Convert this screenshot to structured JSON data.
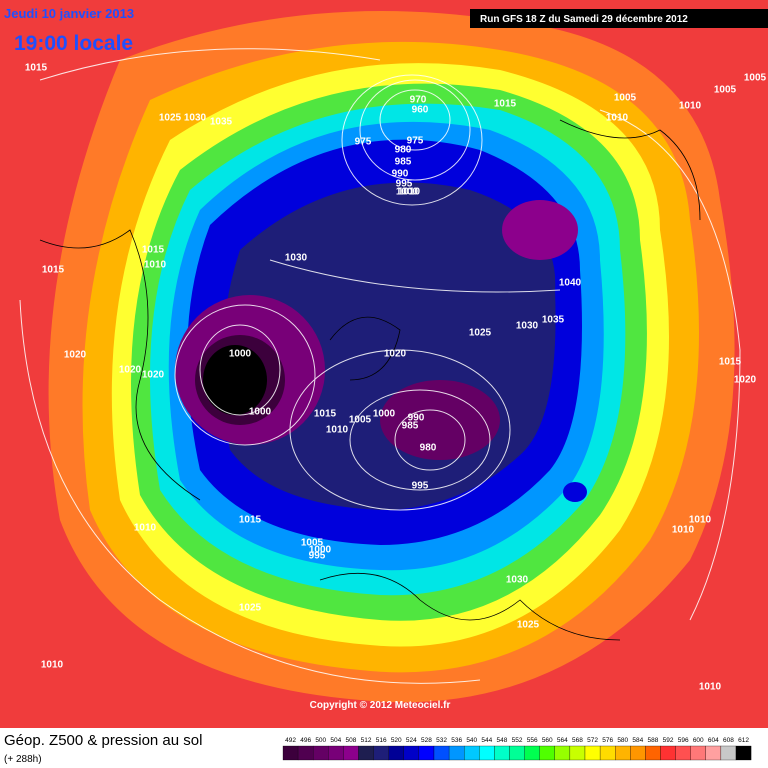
{
  "header": {
    "date": "Jeudi 10 janvier 2013",
    "time": "19:00 locale",
    "run": "Run GFS 18 Z du Samedi 29 décembre 2012"
  },
  "footer": {
    "copyright": "Copyright © 2012 Meteociel.fr",
    "title": "Géop. Z500 & pression au sol",
    "subtitle": "(+ 288h)"
  },
  "colorbar": {
    "values": [
      492,
      496,
      500,
      504,
      508,
      512,
      516,
      520,
      524,
      528,
      532,
      536,
      540,
      544,
      548,
      552,
      556,
      560,
      564,
      568,
      572,
      576,
      580,
      584,
      588,
      592,
      596,
      600,
      604,
      608,
      612
    ],
    "colors": [
      "#3c003c",
      "#500050",
      "#640064",
      "#780078",
      "#8c008c",
      "#1e1e50",
      "#1e1e78",
      "#000096",
      "#0000c8",
      "#0000ff",
      "#0050ff",
      "#0096ff",
      "#00c8ff",
      "#00ffff",
      "#00ffc8",
      "#00ff96",
      "#00ff50",
      "#50ff00",
      "#96ff00",
      "#c8ff00",
      "#ffff00",
      "#ffdc00",
      "#ffb400",
      "#ff9600",
      "#ff6400",
      "#ff3232",
      "#ff5050",
      "#ff7878",
      "#ffa0a0",
      "#c8c8c8",
      "#000000"
    ]
  },
  "map": {
    "pressure_labels": [
      1015,
      1025,
      1030,
      1035,
      970,
      960,
      975,
      975,
      980,
      985,
      990,
      995,
      1000,
      1010,
      1015,
      1005,
      1010,
      1005,
      1005,
      1010,
      1015,
      1010,
      1015,
      1030,
      1040,
      1035,
      1030,
      1025,
      1020,
      1000,
      1020,
      1020,
      1020,
      1000,
      1015,
      1010,
      1005,
      1000,
      990,
      985,
      980,
      995,
      1015,
      1010,
      1005,
      1000,
      995,
      1030,
      1025,
      1025,
      1010,
      1010,
      1010,
      1010,
      1015,
      1020
    ]
  }
}
